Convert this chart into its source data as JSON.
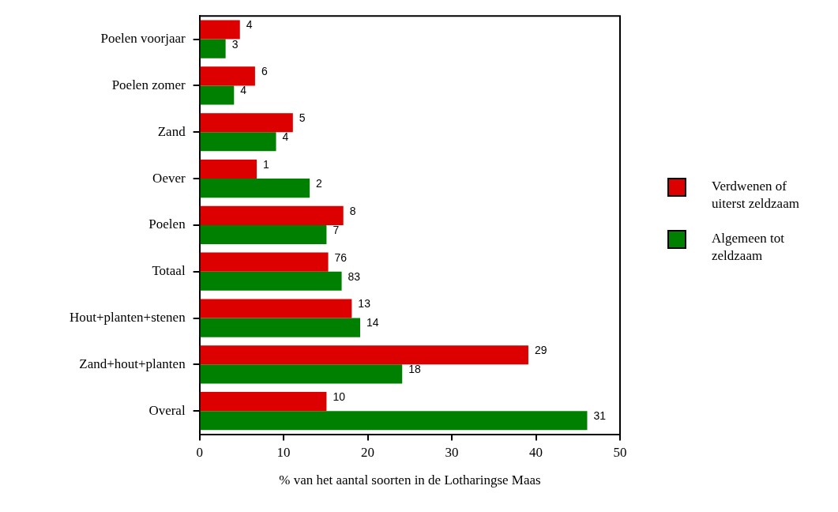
{
  "chart_data": {
    "type": "bar",
    "orientation": "horizontal",
    "xlabel": "% van het aantal soorten in de Lotharingse Maas",
    "categories": [
      "Poelen voorjaar",
      "Poelen zomer",
      "Zand",
      "Oever",
      "Poelen",
      "Totaal",
      "Hout+planten+stenen",
      "Zand+hout+planten",
      "Overal"
    ],
    "series": [
      {
        "name": "Verdwenen of uiterst zeldzaam",
        "color": "#dd0000",
        "values": [
          4.8,
          6.6,
          11.1,
          6.8,
          17.1,
          15.3,
          18.1,
          39.1,
          15.1
        ]
      },
      {
        "name": "Algemeen tot zeldzaam",
        "color": "#008000",
        "values": [
          3.1,
          4.1,
          9.1,
          13.1,
          15.1,
          16.9,
          19.1,
          24.1,
          46.1
        ]
      }
    ],
    "annotations": [
      {
        "text": "4",
        "x": 4.8,
        "y": "Poelen voorjaar"
      },
      {
        "text": "3",
        "x": 3.1,
        "y": "Poelen voorjaar"
      },
      {
        "text": "6",
        "x": 6.6,
        "y": "Poelen zomer"
      },
      {
        "text": "4",
        "x": 4.1,
        "y": "Poelen zomer"
      },
      {
        "text": "5",
        "x": 11.1,
        "y": "Zand"
      },
      {
        "text": "4",
        "x": 9.1,
        "y": "Zand"
      },
      {
        "text": "1",
        "x": 6.8,
        "y": "Oever"
      },
      {
        "text": "2",
        "x": 13.1,
        "y": "Oever"
      },
      {
        "text": "8",
        "x": 17.1,
        "y": "Poelen"
      },
      {
        "text": "7",
        "x": 15.1,
        "y": "Poelen"
      },
      {
        "text": "76",
        "x": 15.3,
        "y": "Totaal"
      },
      {
        "text": "83",
        "x": 16.9,
        "y": "Totaal"
      },
      {
        "text": "13",
        "x": 18.1,
        "y": "Hout+planten+stenen"
      },
      {
        "text": "14",
        "x": 19.1,
        "y": "Hout+planten+stenen"
      },
      {
        "text": "29",
        "x": 39.1,
        "y": "Zand+hout+planten"
      },
      {
        "text": "18",
        "x": 24.1,
        "y": "Zand+hout+planten"
      },
      {
        "text": "10",
        "x": 15.1,
        "y": "Overal"
      },
      {
        "text": "31",
        "x": 46.1,
        "y": "Overal"
      }
    ],
    "xlim": [
      0,
      50
    ],
    "xticks": [
      0,
      10,
      20,
      30,
      40,
      50
    ],
    "grid": false,
    "legend": "right"
  }
}
